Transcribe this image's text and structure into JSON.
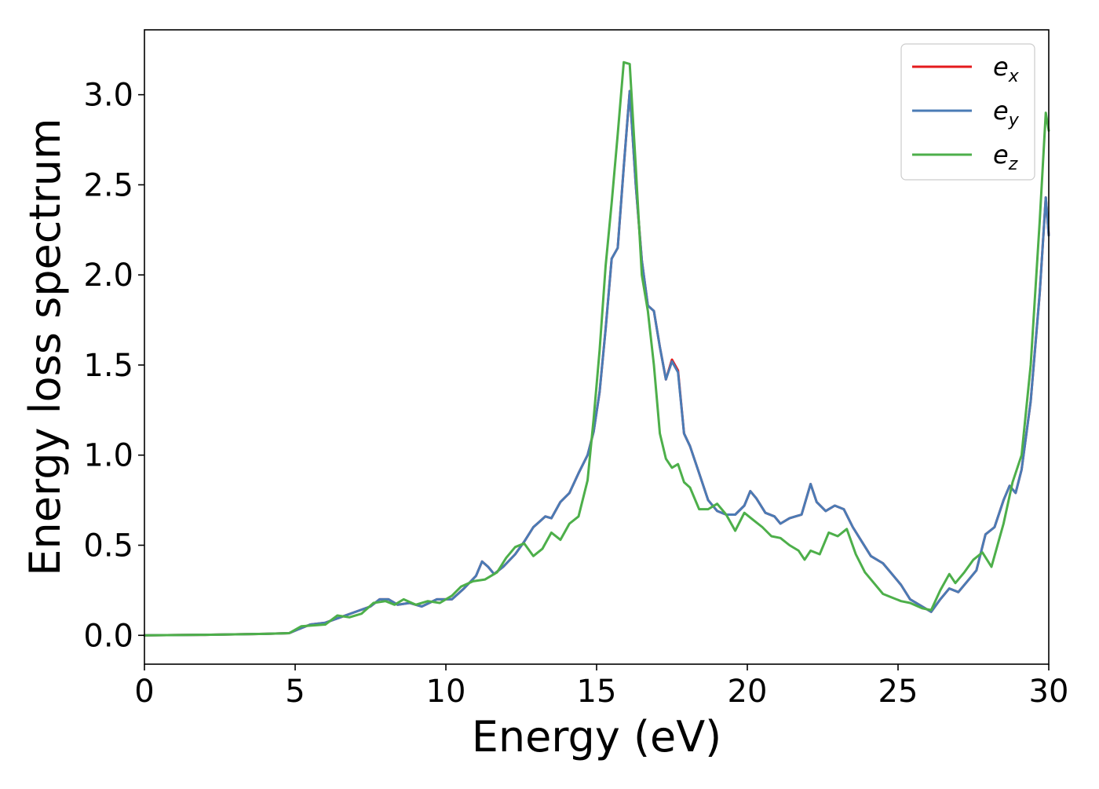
{
  "chart_data": {
    "type": "line",
    "title": "",
    "xlabel": "Energy (eV)",
    "ylabel": "Energy loss spectrum",
    "xlim": [
      0,
      30
    ],
    "ylim": [
      -0.16,
      3.36
    ],
    "xticks": [
      0,
      5,
      10,
      15,
      20,
      25,
      30
    ],
    "xtick_labels": [
      "0",
      "5",
      "10",
      "15",
      "20",
      "25",
      "30"
    ],
    "yticks": [
      0.0,
      0.5,
      1.0,
      1.5,
      2.0,
      2.5,
      3.0
    ],
    "ytick_labels": [
      "0.0",
      "0.5",
      "1.0",
      "1.5",
      "2.0",
      "2.5",
      "3.0"
    ],
    "grid": false,
    "legend_position": "top-right",
    "series": [
      {
        "name": "e_x",
        "label_base": "e",
        "label_sub": "x",
        "color": "#e41a1c",
        "points": [
          [
            0,
            0
          ],
          [
            2,
            0.003
          ],
          [
            4,
            0.008
          ],
          [
            4.8,
            0.012
          ],
          [
            5.2,
            0.04
          ],
          [
            5.5,
            0.06
          ],
          [
            6,
            0.07
          ],
          [
            6.5,
            0.1
          ],
          [
            7,
            0.13
          ],
          [
            7.5,
            0.16
          ],
          [
            7.8,
            0.2
          ],
          [
            8.1,
            0.2
          ],
          [
            8.4,
            0.17
          ],
          [
            8.8,
            0.18
          ],
          [
            9.2,
            0.16
          ],
          [
            9.7,
            0.2
          ],
          [
            10.2,
            0.2
          ],
          [
            10.6,
            0.26
          ],
          [
            11,
            0.33
          ],
          [
            11.2,
            0.41
          ],
          [
            11.4,
            0.38
          ],
          [
            11.6,
            0.34
          ],
          [
            11.9,
            0.38
          ],
          [
            12.3,
            0.45
          ],
          [
            12.6,
            0.52
          ],
          [
            12.9,
            0.6
          ],
          [
            13.1,
            0.63
          ],
          [
            13.3,
            0.66
          ],
          [
            13.5,
            0.65
          ],
          [
            13.8,
            0.74
          ],
          [
            14.1,
            0.79
          ],
          [
            14.4,
            0.9
          ],
          [
            14.7,
            1.0
          ],
          [
            14.9,
            1.13
          ],
          [
            15.1,
            1.35
          ],
          [
            15.3,
            1.7
          ],
          [
            15.5,
            2.09
          ],
          [
            15.7,
            2.15
          ],
          [
            15.9,
            2.6
          ],
          [
            16.1,
            3.02
          ],
          [
            16.3,
            2.5
          ],
          [
            16.5,
            2.08
          ],
          [
            16.7,
            1.83
          ],
          [
            16.9,
            1.8
          ],
          [
            17.1,
            1.6
          ],
          [
            17.3,
            1.42
          ],
          [
            17.5,
            1.53
          ],
          [
            17.7,
            1.47
          ],
          [
            17.9,
            1.12
          ],
          [
            18.1,
            1.05
          ],
          [
            18.4,
            0.9
          ],
          [
            18.7,
            0.75
          ],
          [
            19,
            0.69
          ],
          [
            19.3,
            0.67
          ],
          [
            19.6,
            0.67
          ],
          [
            19.9,
            0.72
          ],
          [
            20.1,
            0.8
          ],
          [
            20.3,
            0.76
          ],
          [
            20.6,
            0.68
          ],
          [
            20.9,
            0.66
          ],
          [
            21.1,
            0.62
          ],
          [
            21.4,
            0.65
          ],
          [
            21.8,
            0.67
          ],
          [
            22.1,
            0.84
          ],
          [
            22.3,
            0.74
          ],
          [
            22.6,
            0.69
          ],
          [
            22.9,
            0.72
          ],
          [
            23.2,
            0.7
          ],
          [
            23.5,
            0.6
          ],
          [
            23.8,
            0.52
          ],
          [
            24.1,
            0.44
          ],
          [
            24.5,
            0.4
          ],
          [
            24.8,
            0.34
          ],
          [
            25.1,
            0.28
          ],
          [
            25.4,
            0.2
          ],
          [
            25.8,
            0.16
          ],
          [
            26.1,
            0.13
          ],
          [
            26.4,
            0.2
          ],
          [
            26.7,
            0.26
          ],
          [
            27,
            0.24
          ],
          [
            27.3,
            0.3
          ],
          [
            27.6,
            0.36
          ],
          [
            27.9,
            0.56
          ],
          [
            28.2,
            0.6
          ],
          [
            28.5,
            0.75
          ],
          [
            28.7,
            0.83
          ],
          [
            28.9,
            0.79
          ],
          [
            29.1,
            0.92
          ],
          [
            29.4,
            1.3
          ],
          [
            29.7,
            1.9
          ],
          [
            29.9,
            2.43
          ],
          [
            30,
            2.22
          ]
        ]
      },
      {
        "name": "e_y",
        "label_base": "e",
        "label_sub": "y",
        "color": "#4a7bb5",
        "points": [
          [
            0,
            0
          ],
          [
            2,
            0.003
          ],
          [
            4,
            0.008
          ],
          [
            4.8,
            0.012
          ],
          [
            5.2,
            0.04
          ],
          [
            5.5,
            0.06
          ],
          [
            6,
            0.07
          ],
          [
            6.5,
            0.1
          ],
          [
            7,
            0.13
          ],
          [
            7.5,
            0.16
          ],
          [
            7.8,
            0.2
          ],
          [
            8.1,
            0.2
          ],
          [
            8.4,
            0.17
          ],
          [
            8.8,
            0.18
          ],
          [
            9.2,
            0.16
          ],
          [
            9.7,
            0.2
          ],
          [
            10.2,
            0.2
          ],
          [
            10.6,
            0.26
          ],
          [
            11,
            0.33
          ],
          [
            11.2,
            0.41
          ],
          [
            11.4,
            0.38
          ],
          [
            11.6,
            0.34
          ],
          [
            11.9,
            0.38
          ],
          [
            12.3,
            0.45
          ],
          [
            12.6,
            0.52
          ],
          [
            12.9,
            0.6
          ],
          [
            13.1,
            0.63
          ],
          [
            13.3,
            0.66
          ],
          [
            13.5,
            0.65
          ],
          [
            13.8,
            0.74
          ],
          [
            14.1,
            0.79
          ],
          [
            14.4,
            0.9
          ],
          [
            14.7,
            1.0
          ],
          [
            14.9,
            1.13
          ],
          [
            15.1,
            1.35
          ],
          [
            15.3,
            1.7
          ],
          [
            15.5,
            2.09
          ],
          [
            15.7,
            2.15
          ],
          [
            15.9,
            2.6
          ],
          [
            16.1,
            3.02
          ],
          [
            16.3,
            2.5
          ],
          [
            16.5,
            2.08
          ],
          [
            16.7,
            1.83
          ],
          [
            16.9,
            1.8
          ],
          [
            17.1,
            1.6
          ],
          [
            17.3,
            1.42
          ],
          [
            17.5,
            1.52
          ],
          [
            17.7,
            1.46
          ],
          [
            17.9,
            1.12
          ],
          [
            18.1,
            1.05
          ],
          [
            18.4,
            0.9
          ],
          [
            18.7,
            0.75
          ],
          [
            19,
            0.69
          ],
          [
            19.3,
            0.67
          ],
          [
            19.6,
            0.67
          ],
          [
            19.9,
            0.72
          ],
          [
            20.1,
            0.8
          ],
          [
            20.3,
            0.76
          ],
          [
            20.6,
            0.68
          ],
          [
            20.9,
            0.66
          ],
          [
            21.1,
            0.62
          ],
          [
            21.4,
            0.65
          ],
          [
            21.8,
            0.67
          ],
          [
            22.1,
            0.84
          ],
          [
            22.3,
            0.74
          ],
          [
            22.6,
            0.69
          ],
          [
            22.9,
            0.72
          ],
          [
            23.2,
            0.7
          ],
          [
            23.5,
            0.6
          ],
          [
            23.8,
            0.52
          ],
          [
            24.1,
            0.44
          ],
          [
            24.5,
            0.4
          ],
          [
            24.8,
            0.34
          ],
          [
            25.1,
            0.28
          ],
          [
            25.4,
            0.2
          ],
          [
            25.8,
            0.16
          ],
          [
            26.1,
            0.13
          ],
          [
            26.4,
            0.2
          ],
          [
            26.7,
            0.26
          ],
          [
            27,
            0.24
          ],
          [
            27.3,
            0.3
          ],
          [
            27.6,
            0.36
          ],
          [
            27.9,
            0.56
          ],
          [
            28.2,
            0.6
          ],
          [
            28.5,
            0.75
          ],
          [
            28.7,
            0.83
          ],
          [
            28.9,
            0.79
          ],
          [
            29.1,
            0.92
          ],
          [
            29.4,
            1.3
          ],
          [
            29.7,
            1.9
          ],
          [
            29.9,
            2.43
          ],
          [
            30,
            2.22
          ]
        ]
      },
      {
        "name": "e_z",
        "label_base": "e",
        "label_sub": "z",
        "color": "#4daf4a",
        "points": [
          [
            0,
            0
          ],
          [
            2,
            0.003
          ],
          [
            4,
            0.008
          ],
          [
            4.8,
            0.012
          ],
          [
            5.2,
            0.05
          ],
          [
            5.6,
            0.055
          ],
          [
            6,
            0.06
          ],
          [
            6.4,
            0.11
          ],
          [
            6.8,
            0.1
          ],
          [
            7.2,
            0.12
          ],
          [
            7.6,
            0.18
          ],
          [
            8,
            0.19
          ],
          [
            8.3,
            0.17
          ],
          [
            8.6,
            0.2
          ],
          [
            9,
            0.17
          ],
          [
            9.4,
            0.19
          ],
          [
            9.8,
            0.18
          ],
          [
            10.2,
            0.22
          ],
          [
            10.5,
            0.27
          ],
          [
            10.9,
            0.3
          ],
          [
            11.3,
            0.31
          ],
          [
            11.7,
            0.35
          ],
          [
            12,
            0.43
          ],
          [
            12.3,
            0.49
          ],
          [
            12.6,
            0.51
          ],
          [
            12.9,
            0.44
          ],
          [
            13.2,
            0.48
          ],
          [
            13.5,
            0.57
          ],
          [
            13.8,
            0.53
          ],
          [
            14.1,
            0.62
          ],
          [
            14.4,
            0.66
          ],
          [
            14.7,
            0.86
          ],
          [
            14.9,
            1.2
          ],
          [
            15.1,
            1.58
          ],
          [
            15.3,
            2.05
          ],
          [
            15.5,
            2.4
          ],
          [
            15.7,
            2.78
          ],
          [
            15.9,
            3.18
          ],
          [
            16.1,
            3.17
          ],
          [
            16.3,
            2.6
          ],
          [
            16.5,
            2.0
          ],
          [
            16.7,
            1.8
          ],
          [
            16.9,
            1.5
          ],
          [
            17.1,
            1.12
          ],
          [
            17.3,
            0.98
          ],
          [
            17.5,
            0.93
          ],
          [
            17.7,
            0.95
          ],
          [
            17.9,
            0.85
          ],
          [
            18.1,
            0.82
          ],
          [
            18.4,
            0.7
          ],
          [
            18.7,
            0.7
          ],
          [
            19,
            0.73
          ],
          [
            19.3,
            0.67
          ],
          [
            19.6,
            0.58
          ],
          [
            19.9,
            0.68
          ],
          [
            20.2,
            0.64
          ],
          [
            20.5,
            0.6
          ],
          [
            20.8,
            0.55
          ],
          [
            21.1,
            0.54
          ],
          [
            21.4,
            0.5
          ],
          [
            21.7,
            0.47
          ],
          [
            21.9,
            0.42
          ],
          [
            22.1,
            0.47
          ],
          [
            22.4,
            0.45
          ],
          [
            22.7,
            0.57
          ],
          [
            23,
            0.55
          ],
          [
            23.3,
            0.59
          ],
          [
            23.6,
            0.45
          ],
          [
            23.9,
            0.35
          ],
          [
            24.2,
            0.29
          ],
          [
            24.5,
            0.23
          ],
          [
            24.8,
            0.21
          ],
          [
            25.1,
            0.19
          ],
          [
            25.4,
            0.18
          ],
          [
            25.8,
            0.15
          ],
          [
            26.1,
            0.14
          ],
          [
            26.4,
            0.25
          ],
          [
            26.7,
            0.34
          ],
          [
            26.9,
            0.29
          ],
          [
            27.2,
            0.35
          ],
          [
            27.5,
            0.42
          ],
          [
            27.8,
            0.46
          ],
          [
            28.1,
            0.38
          ],
          [
            28.3,
            0.5
          ],
          [
            28.5,
            0.62
          ],
          [
            28.8,
            0.85
          ],
          [
            29.1,
            1.0
          ],
          [
            29.4,
            1.5
          ],
          [
            29.7,
            2.3
          ],
          [
            29.9,
            2.9
          ],
          [
            30,
            2.8
          ]
        ]
      }
    ]
  }
}
